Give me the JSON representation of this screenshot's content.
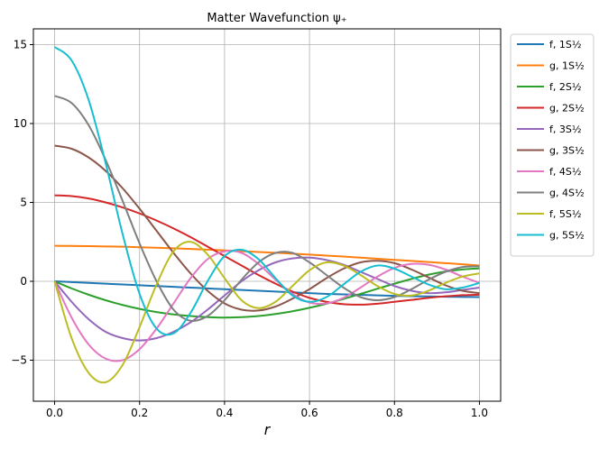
{
  "chart_data": {
    "type": "line",
    "title": "Matter Wavefunction ψ₊",
    "xlabel": "r",
    "ylabel": "",
    "xlim": [
      -0.05,
      1.05
    ],
    "ylim": [
      -7.6,
      16.0
    ],
    "xticks": [
      0.0,
      0.2,
      0.4,
      0.6,
      0.8,
      1.0
    ],
    "xtick_labels": [
      "0.0",
      "0.2",
      "0.4",
      "0.6",
      "0.8",
      "1.0"
    ],
    "yticks": [
      -5,
      0,
      5,
      10,
      15
    ],
    "ytick_labels": [
      "−5",
      "0",
      "5",
      "10",
      "15"
    ],
    "grid": true,
    "legend_position": "outside-right",
    "x": [
      0,
      0.04,
      0.08,
      0.12,
      0.16,
      0.2,
      0.24,
      0.28,
      0.32,
      0.36,
      0.4,
      0.44,
      0.48,
      0.52,
      0.56,
      0.6,
      0.64,
      0.68,
      0.72,
      0.76,
      0.8,
      0.84,
      0.88,
      0.92,
      0.96,
      1.0
    ],
    "series": [
      {
        "name": "f, 1S½",
        "color": "#1f77b4",
        "values": [
          0,
          -0.05,
          -0.1,
          -0.15,
          -0.2,
          -0.25,
          -0.3,
          -0.35,
          -0.4,
          -0.45,
          -0.5,
          -0.55,
          -0.6,
          -0.65,
          -0.7,
          -0.75,
          -0.8,
          -0.83,
          -0.86,
          -0.89,
          -0.92,
          -0.94,
          -0.96,
          -0.98,
          -0.99,
          -1.0
        ]
      },
      {
        "name": "g, 1S½",
        "color": "#ff7f0e",
        "values": [
          2.25,
          2.24,
          2.23,
          2.21,
          2.19,
          2.16,
          2.13,
          2.09,
          2.05,
          2.01,
          1.96,
          1.91,
          1.86,
          1.81,
          1.75,
          1.69,
          1.63,
          1.57,
          1.5,
          1.43,
          1.36,
          1.29,
          1.22,
          1.15,
          1.08,
          1.0
        ]
      },
      {
        "name": "f, 2S½",
        "color": "#2ca02c",
        "values": [
          0,
          -0.45,
          -0.85,
          -1.2,
          -1.5,
          -1.75,
          -1.95,
          -2.1,
          -2.2,
          -2.27,
          -2.3,
          -2.27,
          -2.2,
          -2.07,
          -1.9,
          -1.68,
          -1.42,
          -1.12,
          -0.8,
          -0.47,
          -0.15,
          0.15,
          0.42,
          0.62,
          0.75,
          0.82
        ]
      },
      {
        "name": "g, 2S½",
        "color": "#d62728",
        "values": [
          5.45,
          5.4,
          5.25,
          5.0,
          4.68,
          4.3,
          3.85,
          3.35,
          2.8,
          2.2,
          1.6,
          1.0,
          0.4,
          -0.15,
          -0.65,
          -1.05,
          -1.3,
          -1.45,
          -1.48,
          -1.42,
          -1.3,
          -1.18,
          -1.05,
          -0.95,
          -0.88,
          -0.85
        ]
      },
      {
        "name": "f, 3S½",
        "color": "#9467bd",
        "values": [
          0,
          -1.3,
          -2.4,
          -3.2,
          -3.6,
          -3.75,
          -3.6,
          -3.2,
          -2.6,
          -1.8,
          -0.9,
          0,
          0.7,
          1.2,
          1.45,
          1.5,
          1.35,
          1.05,
          0.6,
          0.15,
          -0.3,
          -0.6,
          -0.75,
          -0.7,
          -0.55,
          -0.4
        ]
      },
      {
        "name": "g, 3S½",
        "color": "#8c564b",
        "values": [
          8.6,
          8.4,
          7.85,
          7.0,
          5.9,
          4.6,
          3.2,
          1.8,
          0.5,
          -0.6,
          -1.4,
          -1.8,
          -1.85,
          -1.6,
          -1.1,
          -0.5,
          0.2,
          0.8,
          1.2,
          1.3,
          1.15,
          0.75,
          0.25,
          -0.25,
          -0.6,
          -0.75
        ]
      },
      {
        "name": "f, 4S½",
        "color": "#e377c2",
        "values": [
          0,
          -2.3,
          -4.0,
          -4.9,
          -5.0,
          -4.3,
          -3.0,
          -1.4,
          0.2,
          1.4,
          1.9,
          1.8,
          1.1,
          0.1,
          -0.8,
          -1.35,
          -1.4,
          -1.05,
          -0.4,
          0.3,
          0.85,
          1.1,
          1.05,
          0.75,
          0.3,
          -0.1
        ]
      },
      {
        "name": "g, 4S½",
        "color": "#7f7f7f",
        "values": [
          11.75,
          11.3,
          9.9,
          7.7,
          5.1,
          2.4,
          0.0,
          -1.8,
          -2.5,
          -2.2,
          -1.2,
          0.1,
          1.2,
          1.8,
          1.8,
          1.2,
          0.4,
          -0.4,
          -1.0,
          -1.2,
          -1.0,
          -0.5,
          0.1,
          0.6,
          0.9,
          0.95
        ]
      },
      {
        "name": "f, 5S½",
        "color": "#bcbd22",
        "values": [
          0,
          -3.6,
          -5.8,
          -6.4,
          -5.3,
          -2.9,
          -0.2,
          1.9,
          2.5,
          1.7,
          0.2,
          -1.2,
          -1.7,
          -1.3,
          -0.3,
          0.7,
          1.2,
          1.0,
          0.4,
          -0.3,
          -0.8,
          -0.9,
          -0.6,
          -0.1,
          0.3,
          0.5
        ]
      },
      {
        "name": "g, 5S½",
        "color": "#17becf",
        "values": [
          14.85,
          14.0,
          11.5,
          7.5,
          3.0,
          -0.8,
          -3.0,
          -3.3,
          -2.0,
          0.0,
          1.6,
          2.0,
          1.4,
          0.2,
          -0.9,
          -1.3,
          -1.0,
          -0.2,
          0.6,
          1.0,
          0.8,
          0.3,
          -0.2,
          -0.5,
          -0.4,
          -0.1
        ]
      }
    ]
  }
}
